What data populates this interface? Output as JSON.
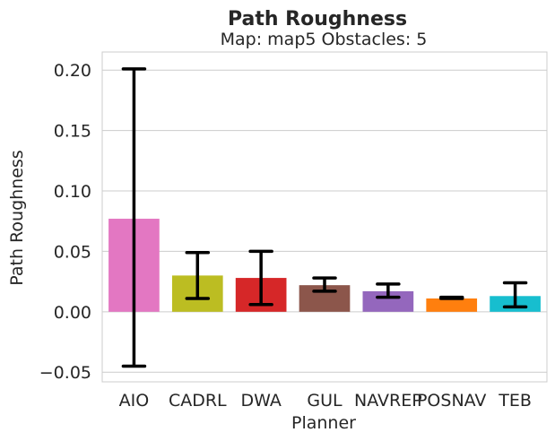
{
  "chart_data": {
    "type": "bar",
    "title": "Path Roughness",
    "subtitle": "Map: map5 Obstacles: 5",
    "xlabel": "Planner",
    "ylabel": "Path Roughness",
    "ylim": [
      -0.058,
      0.215
    ],
    "yticks": [
      -0.05,
      0.0,
      0.05,
      0.1,
      0.15,
      0.2
    ],
    "ytick_labels": [
      "−0.05",
      "0.00",
      "0.05",
      "0.10",
      "0.15",
      "0.20"
    ],
    "grid": true,
    "categories": [
      "AIO",
      "CADRL",
      "DWA",
      "GUL",
      "NAVREP",
      "POSNAV",
      "TEB"
    ],
    "values": [
      0.077,
      0.03,
      0.028,
      0.022,
      0.017,
      0.011,
      0.013
    ],
    "error_low": [
      -0.045,
      0.011,
      0.006,
      0.017,
      0.012,
      0.011,
      0.004
    ],
    "error_high": [
      0.201,
      0.049,
      0.05,
      0.028,
      0.023,
      0.012,
      0.024
    ],
    "colors": [
      "#e377c2",
      "#bcbd22",
      "#d62728",
      "#8c564b",
      "#9467bd",
      "#ff7f0e",
      "#17becf"
    ]
  }
}
